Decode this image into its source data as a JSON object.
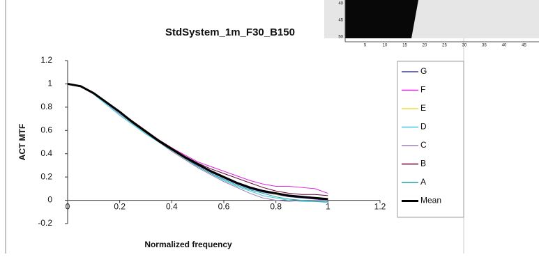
{
  "chart_data": {
    "type": "line",
    "title": "StdSystem_1m_F30_B150",
    "x_label": "Normalized frequency",
    "y_label": "ACT MTF",
    "x": [
      0,
      0.05,
      0.1,
      0.15,
      0.2,
      0.25,
      0.3,
      0.35,
      0.4,
      0.45,
      0.5,
      0.55,
      0.6,
      0.65,
      0.7,
      0.75,
      0.8,
      0.85,
      0.9,
      0.95,
      1
    ],
    "xlim": [
      0,
      1.2
    ],
    "xticks": [
      0,
      0.2,
      0.4,
      0.6,
      0.8,
      1,
      1.2
    ],
    "ylim": [
      -0.2,
      1.2
    ],
    "yticks": [
      -0.2,
      0,
      0.2,
      0.4,
      0.6,
      0.8,
      1,
      1.2
    ],
    "series": [
      {
        "name": "G",
        "color": "#3a3a90",
        "values": [
          1,
          0.98,
          0.92,
          0.84,
          0.75,
          0.67,
          0.59,
          0.51,
          0.43,
          0.36,
          0.3,
          0.24,
          0.19,
          0.14,
          0.1,
          0.07,
          0.05,
          0.03,
          0.02,
          0.01,
          0.0
        ]
      },
      {
        "name": "F",
        "color": "#e020e0",
        "values": [
          1,
          0.98,
          0.92,
          0.84,
          0.76,
          0.67,
          0.59,
          0.52,
          0.45,
          0.39,
          0.33,
          0.29,
          0.25,
          0.21,
          0.17,
          0.14,
          0.12,
          0.12,
          0.11,
          0.1,
          0.06
        ]
      },
      {
        "name": "E",
        "color": "#e8e040",
        "values": [
          1,
          0.98,
          0.92,
          0.84,
          0.76,
          0.68,
          0.6,
          0.52,
          0.45,
          0.38,
          0.31,
          0.25,
          0.2,
          0.15,
          0.11,
          0.08,
          0.05,
          0.04,
          0.03,
          0.02,
          0.01
        ]
      },
      {
        "name": "D",
        "color": "#40c8e0",
        "values": [
          1,
          0.98,
          0.91,
          0.82,
          0.73,
          0.65,
          0.57,
          0.5,
          0.43,
          0.36,
          0.29,
          0.23,
          0.17,
          0.12,
          0.08,
          0.04,
          0.02,
          0.0,
          -0.01,
          -0.01,
          -0.02
        ]
      },
      {
        "name": "C",
        "color": "#9a80b0",
        "values": [
          1,
          0.98,
          0.92,
          0.83,
          0.74,
          0.66,
          0.58,
          0.5,
          0.42,
          0.35,
          0.28,
          0.22,
          0.16,
          0.11,
          0.06,
          0.02,
          0.0,
          -0.01,
          0.0,
          0.0,
          0.0
        ]
      },
      {
        "name": "B",
        "color": "#600030",
        "values": [
          1,
          0.98,
          0.92,
          0.84,
          0.76,
          0.68,
          0.6,
          0.52,
          0.45,
          0.38,
          0.32,
          0.27,
          0.23,
          0.19,
          0.15,
          0.11,
          0.08,
          0.06,
          0.05,
          0.05,
          0.04
        ]
      },
      {
        "name": "A",
        "color": "#20a0a0",
        "values": [
          1,
          0.98,
          0.92,
          0.83,
          0.75,
          0.66,
          0.58,
          0.5,
          0.43,
          0.36,
          0.29,
          0.23,
          0.18,
          0.13,
          0.09,
          0.06,
          0.03,
          0.01,
          0.0,
          -0.01,
          -0.01
        ]
      },
      {
        "name": "Mean",
        "color": "#000000",
        "values": [
          1,
          0.98,
          0.92,
          0.84,
          0.76,
          0.67,
          0.59,
          0.51,
          0.44,
          0.37,
          0.31,
          0.25,
          0.2,
          0.15,
          0.11,
          0.08,
          0.06,
          0.04,
          0.03,
          0.02,
          0.01
        ]
      }
    ],
    "inset": {
      "xticks": [
        5,
        10,
        15,
        20,
        25,
        30,
        35,
        40,
        45
      ],
      "yticks": [
        40,
        45,
        50
      ]
    }
  }
}
